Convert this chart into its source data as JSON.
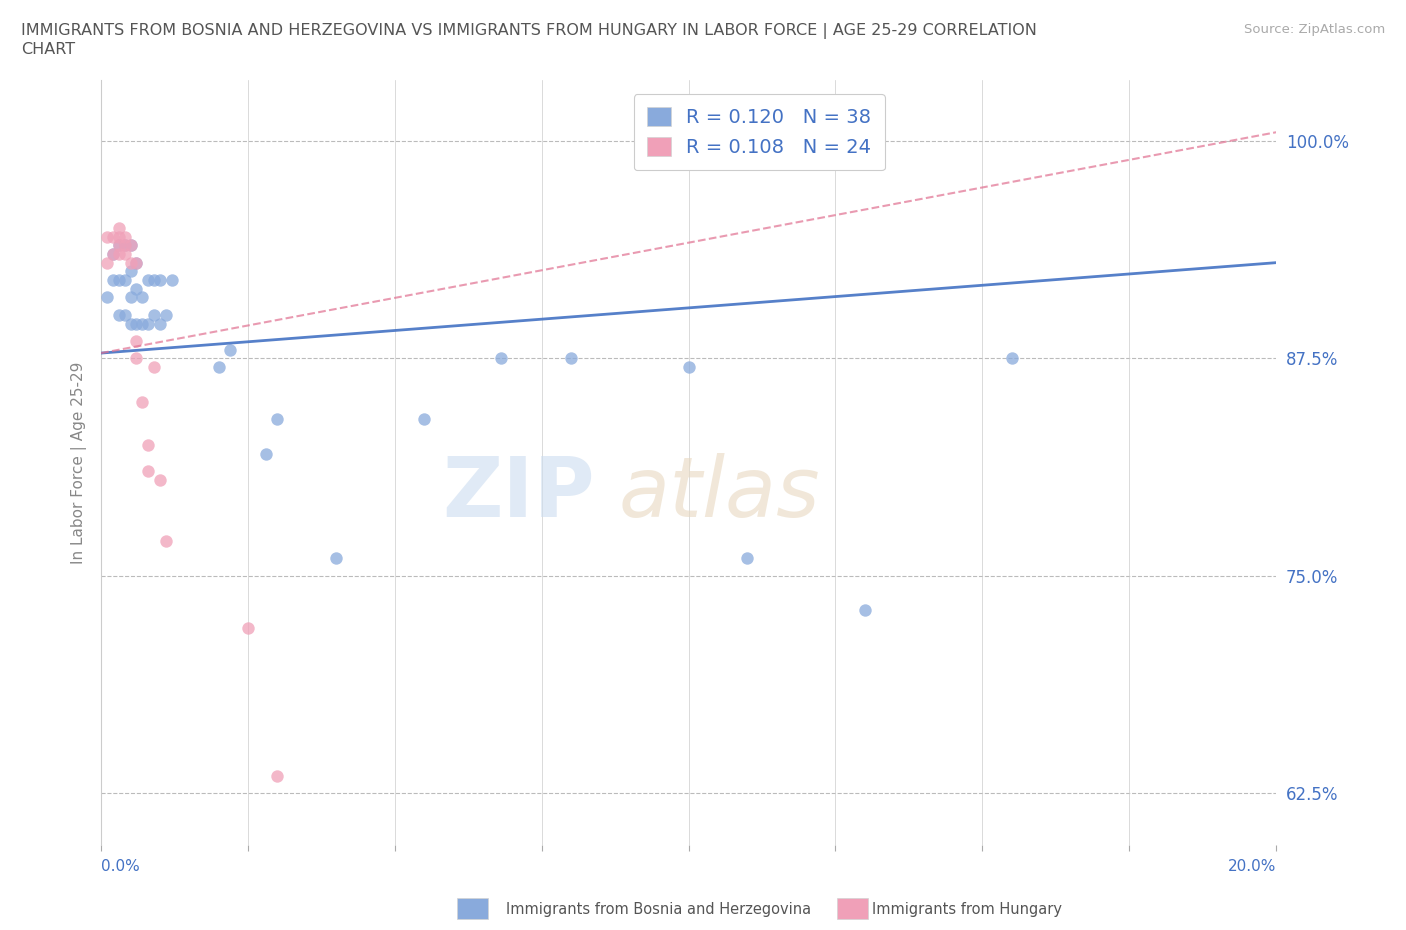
{
  "title": "IMMIGRANTS FROM BOSNIA AND HERZEGOVINA VS IMMIGRANTS FROM HUNGARY IN LABOR FORCE | AGE 25-29 CORRELATION\nCHART",
  "source": "Source: ZipAtlas.com",
  "ylabel": "In Labor Force | Age 25-29",
  "ytick_vals": [
    0.625,
    0.75,
    0.875,
    1.0
  ],
  "xlim": [
    0.0,
    0.2
  ],
  "ylim": [
    0.595,
    1.035
  ],
  "bosnia_color": "#89aadc",
  "hungary_color": "#f0a0b8",
  "bosnia_line_color": "#4472c4",
  "hungary_line_color": "#e07090",
  "legend_R_bosnia": "R = 0.120",
  "legend_N_bosnia": "N = 38",
  "legend_R_hungary": "R = 0.108",
  "legend_N_hungary": "N = 24",
  "bosnia_x": [
    0.001,
    0.002,
    0.002,
    0.003,
    0.003,
    0.003,
    0.004,
    0.004,
    0.004,
    0.005,
    0.005,
    0.005,
    0.005,
    0.006,
    0.006,
    0.006,
    0.007,
    0.007,
    0.008,
    0.008,
    0.009,
    0.009,
    0.01,
    0.01,
    0.011,
    0.012,
    0.02,
    0.022,
    0.028,
    0.03,
    0.04,
    0.055,
    0.068,
    0.08,
    0.1,
    0.11,
    0.13,
    0.155
  ],
  "bosnia_y": [
    0.91,
    0.92,
    0.935,
    0.9,
    0.92,
    0.94,
    0.9,
    0.92,
    0.94,
    0.895,
    0.91,
    0.925,
    0.94,
    0.895,
    0.915,
    0.93,
    0.895,
    0.91,
    0.895,
    0.92,
    0.9,
    0.92,
    0.895,
    0.92,
    0.9,
    0.92,
    0.87,
    0.88,
    0.82,
    0.84,
    0.76,
    0.84,
    0.875,
    0.875,
    0.87,
    0.76,
    0.73,
    0.875
  ],
  "hungary_x": [
    0.001,
    0.001,
    0.002,
    0.002,
    0.003,
    0.003,
    0.003,
    0.003,
    0.004,
    0.004,
    0.004,
    0.005,
    0.005,
    0.006,
    0.006,
    0.006,
    0.007,
    0.008,
    0.008,
    0.009,
    0.01,
    0.011,
    0.025,
    0.03
  ],
  "hungary_y": [
    0.93,
    0.945,
    0.935,
    0.945,
    0.935,
    0.94,
    0.945,
    0.95,
    0.935,
    0.94,
    0.945,
    0.93,
    0.94,
    0.875,
    0.885,
    0.93,
    0.85,
    0.81,
    0.825,
    0.87,
    0.805,
    0.77,
    0.72,
    0.635
  ],
  "bosnia_line_x": [
    0.0,
    0.2
  ],
  "bosnia_line_y": [
    0.878,
    0.93
  ],
  "hungary_line_x": [
    0.0,
    0.2
  ],
  "hungary_line_y": [
    0.878,
    1.005
  ]
}
